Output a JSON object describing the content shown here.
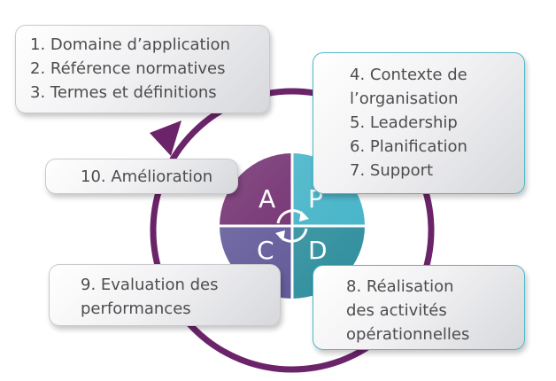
{
  "colors": {
    "plan_quadrant": "#3fb1c6",
    "act_quadrant": "#6b2469",
    "check_quadrant": "#5b5395",
    "do_quadrant": "#2d8d9c",
    "cycle_arrow": "#6b2469",
    "box_border_teal": "#4fb9c8"
  },
  "pdca": {
    "act": "A",
    "plan": "P",
    "check": "C",
    "do": "D"
  },
  "boxes": {
    "scope": {
      "lines": [
        "1. Domaine d’application",
        "2. Référence normatives",
        "3. Termes et définitions"
      ]
    },
    "context": {
      "lines": [
        "4. Contexte de",
        "l’organisation",
        "5. Leadership",
        "6. Planification",
        "7. Support"
      ]
    },
    "improvement": {
      "lines": [
        "10. Amélioration"
      ]
    },
    "evaluation": {
      "lines": [
        "9. Evaluation des",
        "performances"
      ]
    },
    "operations": {
      "lines": [
        "8. Réalisation",
        "des activités",
        "opérationnelles"
      ]
    }
  }
}
